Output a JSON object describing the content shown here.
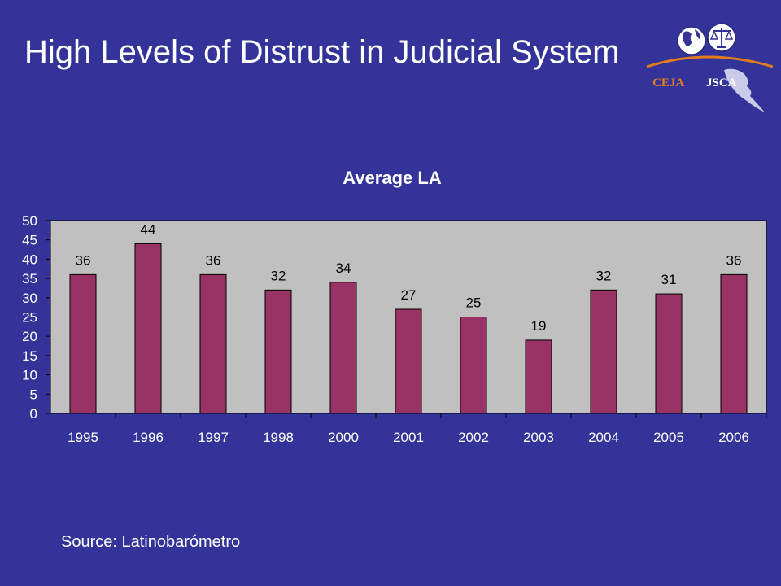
{
  "slide": {
    "title": "High Levels of Distrust in Judicial System",
    "source": "Source: Latinobarómetro"
  },
  "logo": {
    "left_text": "CEJA",
    "right_text": "JSCA",
    "icons": [
      "globe-icon",
      "scales-of-justice-icon",
      "map-icon"
    ]
  },
  "colors": {
    "background": "#333399",
    "plot_area": "#c0c0c0",
    "bar": "#993366",
    "text": "#ffffff",
    "axis_text": "#000000"
  },
  "chart_data": {
    "type": "bar",
    "title": "Average LA",
    "categories": [
      "1995",
      "1996",
      "1997",
      "1998",
      "2000",
      "2001",
      "2002",
      "2003",
      "2004",
      "2005",
      "2006"
    ],
    "values": [
      36,
      44,
      36,
      32,
      34,
      27,
      25,
      19,
      32,
      31,
      36
    ],
    "data_labels": [
      "36",
      "44",
      "36",
      "32",
      "34",
      "27",
      "25",
      "19",
      "32",
      "31",
      "36"
    ],
    "y_ticks": [
      "0",
      "5",
      "10",
      "15",
      "20",
      "25",
      "30",
      "35",
      "40",
      "45",
      "50"
    ],
    "ylim": [
      0,
      50
    ],
    "xlabel": "",
    "ylabel": "",
    "grid": false,
    "legend": "none"
  }
}
